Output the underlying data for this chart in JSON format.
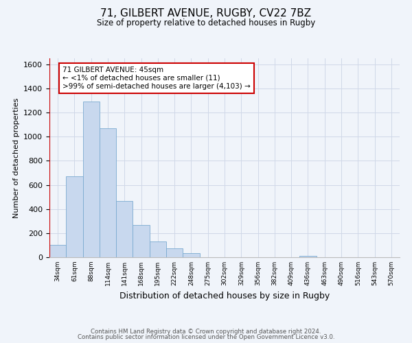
{
  "title": "71, GILBERT AVENUE, RUGBY, CV22 7BZ",
  "subtitle": "Size of property relative to detached houses in Rugby",
  "xlabel": "Distribution of detached houses by size in Rugby",
  "ylabel": "Number of detached properties",
  "bin_labels": [
    "34sqm",
    "61sqm",
    "88sqm",
    "114sqm",
    "141sqm",
    "168sqm",
    "195sqm",
    "222sqm",
    "248sqm",
    "275sqm",
    "302sqm",
    "329sqm",
    "356sqm",
    "382sqm",
    "409sqm",
    "436sqm",
    "463sqm",
    "490sqm",
    "516sqm",
    "543sqm",
    "570sqm"
  ],
  "bar_heights": [
    100,
    670,
    1290,
    1070,
    465,
    268,
    130,
    75,
    35,
    0,
    0,
    0,
    0,
    0,
    0,
    12,
    0,
    0,
    0,
    0,
    0
  ],
  "bar_color": "#c8d8ee",
  "bar_edge_color": "#7aaad0",
  "highlight_color": "#cc0000",
  "ylim": [
    0,
    1650
  ],
  "yticks": [
    0,
    200,
    400,
    600,
    800,
    1000,
    1200,
    1400,
    1600
  ],
  "annotation_title": "71 GILBERT AVENUE: 45sqm",
  "annotation_line1": "← <1% of detached houses are smaller (11)",
  "annotation_line2": ">99% of semi-detached houses are larger (4,103) →",
  "annotation_box_color": "#ffffff",
  "annotation_box_edge": "#cc0000",
  "grid_color": "#d0d8e8",
  "background_color": "#f0f4fa",
  "footer_line1": "Contains HM Land Registry data © Crown copyright and database right 2024.",
  "footer_line2": "Contains public sector information licensed under the Open Government Licence v3.0."
}
